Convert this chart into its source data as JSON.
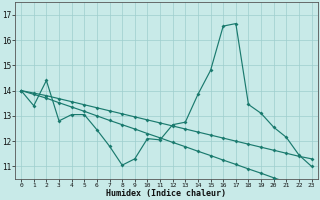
{
  "xlabel": "Humidex (Indice chaleur)",
  "bg_color": "#c8eae8",
  "line_color": "#1a7a6e",
  "grid_color": "#9ecece",
  "xlim": [
    -0.5,
    23.5
  ],
  "ylim": [
    10.5,
    17.5
  ],
  "xticks": [
    0,
    1,
    2,
    3,
    4,
    5,
    6,
    7,
    8,
    9,
    10,
    11,
    12,
    13,
    14,
    15,
    16,
    17,
    18,
    19,
    20,
    21,
    22,
    23
  ],
  "yticks": [
    11,
    12,
    13,
    14,
    15,
    16,
    17
  ],
  "line1_x": [
    0,
    1,
    2,
    3,
    4,
    5,
    6,
    7,
    8,
    9,
    10,
    11,
    12,
    13,
    14,
    15,
    16,
    17,
    18,
    19,
    20,
    21,
    22,
    23
  ],
  "line1_y": [
    14.0,
    13.4,
    14.4,
    12.8,
    13.05,
    13.05,
    12.45,
    11.8,
    11.05,
    11.3,
    12.1,
    12.05,
    12.65,
    12.75,
    13.85,
    14.8,
    16.55,
    16.65,
    13.45,
    13.1,
    12.55,
    12.15,
    11.45,
    11.0
  ],
  "line2_x": [
    0,
    1,
    2,
    3,
    4,
    5,
    6,
    7,
    8,
    9,
    10,
    11,
    12,
    13,
    14,
    15,
    16,
    17,
    18,
    19,
    20,
    21,
    22,
    23
  ],
  "line2_y": [
    14.0,
    13.85,
    13.7,
    13.52,
    13.35,
    13.18,
    13.0,
    12.82,
    12.65,
    12.48,
    12.3,
    12.13,
    11.95,
    11.78,
    11.6,
    11.43,
    11.25,
    11.08,
    10.9,
    10.73,
    10.55,
    10.38,
    10.25,
    10.12
  ],
  "line3_x": [
    0,
    1,
    2,
    3,
    4,
    5,
    6,
    7,
    8,
    9,
    10,
    11,
    12,
    13,
    14,
    15,
    16,
    17,
    18,
    19,
    20,
    21,
    22,
    23
  ],
  "line3_y": [
    14.0,
    13.9,
    13.8,
    13.68,
    13.56,
    13.44,
    13.32,
    13.2,
    13.08,
    12.96,
    12.84,
    12.72,
    12.6,
    12.48,
    12.36,
    12.24,
    12.12,
    12.0,
    11.88,
    11.76,
    11.64,
    11.52,
    11.4,
    11.3
  ]
}
